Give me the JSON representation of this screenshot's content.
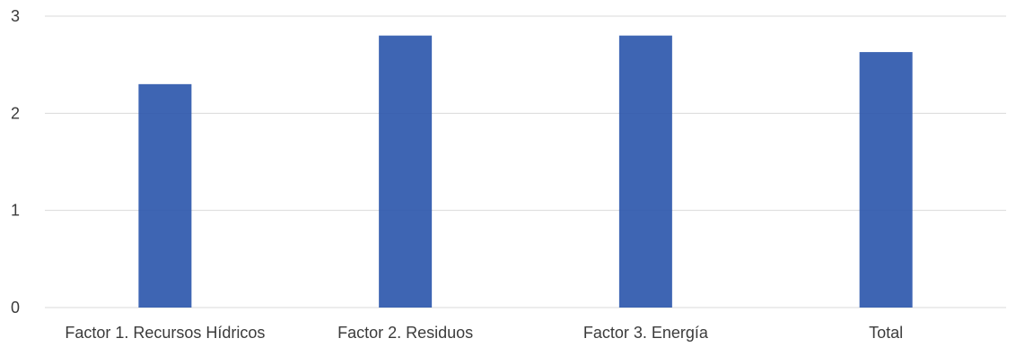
{
  "chart_data": {
    "type": "bar",
    "categories": [
      "Factor 1. Recursos Hídricos",
      "Factor 2. Residuos",
      "Factor 3. Energía",
      "Total"
    ],
    "values": [
      2.3,
      2.8,
      2.8,
      2.63
    ],
    "ylim": [
      0,
      3
    ],
    "yticks": [
      "0",
      "1",
      "2",
      "3"
    ],
    "title": "",
    "xlabel": "",
    "ylabel": "",
    "grid": true,
    "legend": "none",
    "bar_color": "#2e58ad",
    "grid_color": "#d9d9d9"
  }
}
